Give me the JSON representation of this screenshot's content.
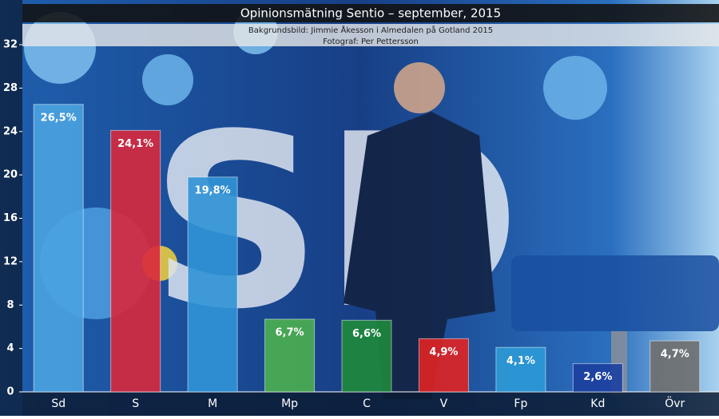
{
  "chart_data": {
    "type": "bar",
    "title": "Opinionsmätning Sentio – september, 2015",
    "subtitle": [
      "Bakgrundsbild: Jimmie Åkesson i Almedalen på Gotland 2015",
      "Fotograf: Per Pettersson"
    ],
    "categories": [
      "Sd",
      "S",
      "M",
      "Mp",
      "C",
      "V",
      "Fp",
      "Kd",
      "Övr"
    ],
    "values": [
      26.5,
      24.1,
      19.8,
      6.7,
      6.6,
      4.9,
      4.1,
      2.6,
      4.7
    ],
    "value_labels": [
      "26,5%",
      "24,1%",
      "19,8%",
      "6,7%",
      "6,6%",
      "4,9%",
      "4,1%",
      "2,6%",
      "4,7%"
    ],
    "colors": [
      "#4aa3e0",
      "#d8283c",
      "#3194d6",
      "#4caf50",
      "#1f8a3c",
      "#e02424",
      "#2c9ad6",
      "#1c3f9e",
      "#6e6e6e"
    ],
    "ylim": [
      0,
      32
    ],
    "yticks": [
      0,
      4,
      8,
      12,
      16,
      20,
      24,
      28,
      32
    ]
  }
}
